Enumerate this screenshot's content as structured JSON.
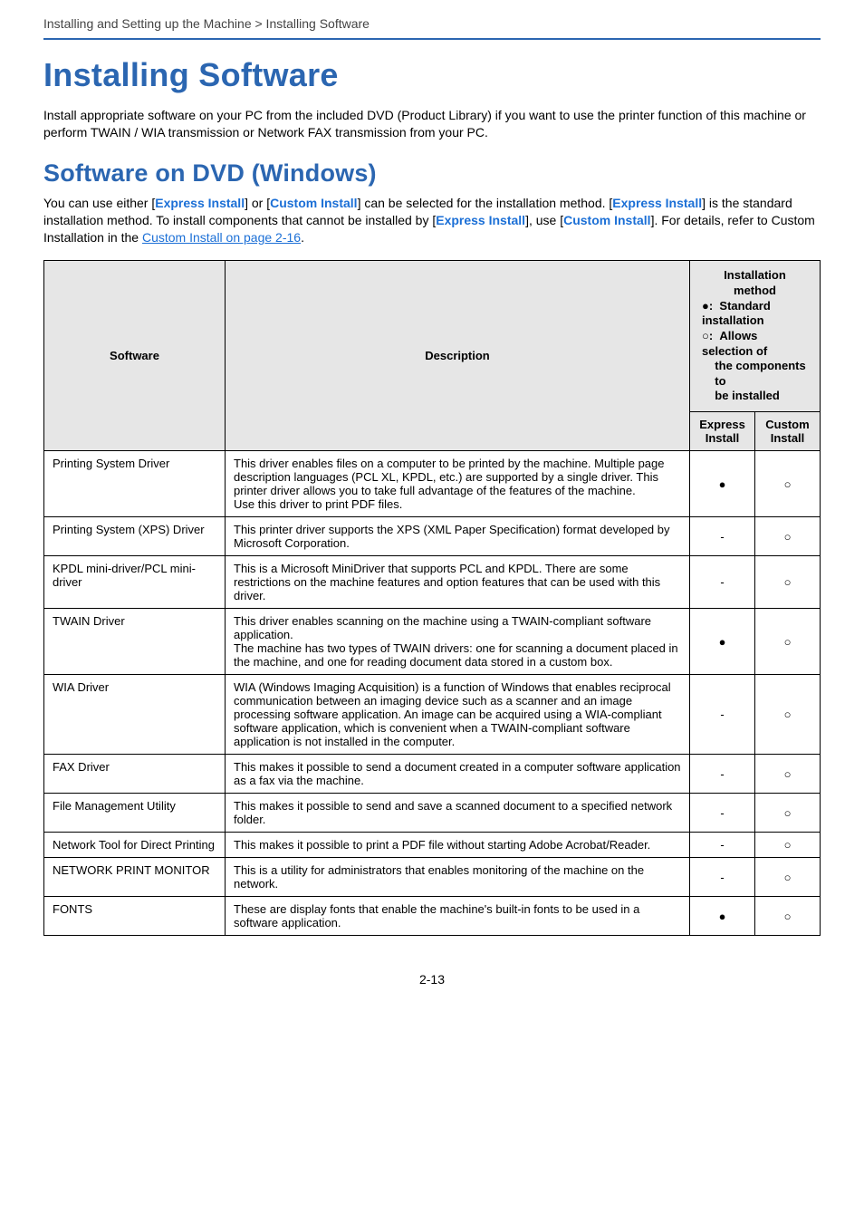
{
  "breadcrumb": "Installing and Setting up the Machine > Installing Software",
  "title": "Installing Software",
  "intro": "Install appropriate software on your PC from the included DVD (Product Library) if you want to use the printer function of this machine or perform TWAIN / WIA transmission or Network FAX transmission from your PC.",
  "sub_title": "Software on DVD (Windows)",
  "sub_intro_parts": {
    "a": "You can use either [",
    "express1": "Express Install",
    "b": "] or [",
    "custom1": "Custom Install",
    "c": "] can be selected for the installation method. [",
    "express2": "Express Install",
    "d": "] is the standard installation method. To install components that cannot be installed by [",
    "express3": "Express Install",
    "e": "], use [",
    "custom2": "Custom Install",
    "f": "]. For details, refer to Custom Installation in the ",
    "link": "Custom Install on page 2-16",
    "g": "."
  },
  "table": {
    "headers": {
      "software": "Software",
      "description": "Description",
      "install_method_title": "Installation method",
      "legend_standard": "Standard installation",
      "legend_selection_l1": "Allows selection of",
      "legend_selection_l2": "the components to",
      "legend_selection_l3": "be installed",
      "express": "Express Install",
      "custom": "Custom Install"
    },
    "rows": [
      {
        "software": "Printing System Driver",
        "description": "This driver enables files on a computer to be printed by the machine. Multiple page description languages (PCL XL, KPDL, etc.) are supported by a single driver. This printer driver allows you to take full advantage of the features of the machine.\nUse this driver to print PDF files.",
        "express": "●",
        "custom": "○"
      },
      {
        "software": "Printing System (XPS) Driver",
        "description": "This printer driver supports the XPS (XML Paper Specification) format developed by Microsoft Corporation.",
        "express": "-",
        "custom": "○"
      },
      {
        "software": "KPDL mini-driver/PCL mini-driver",
        "description": "This is a Microsoft MiniDriver that supports PCL and KPDL. There are some restrictions on the machine features and option features that can be used with this driver.",
        "express": "-",
        "custom": "○"
      },
      {
        "software": "TWAIN Driver",
        "description": "This driver enables scanning on the machine using a TWAIN-compliant software application.\nThe machine has two types of TWAIN drivers: one for scanning a document placed in the machine, and one for reading document data stored in a custom box.",
        "express": "●",
        "custom": "○"
      },
      {
        "software": "WIA Driver",
        "description": "WIA (Windows Imaging Acquisition) is a function of Windows that enables reciprocal communication between an imaging device such as a scanner and an image processing software application. An image can be acquired using a WIA-compliant software application, which is convenient when a TWAIN-compliant software application is not installed in the computer.",
        "express": "-",
        "custom": "○"
      },
      {
        "software": "FAX Driver",
        "description": "This makes it possible to send a document created in a computer software application as a fax via the machine.",
        "express": "-",
        "custom": "○"
      },
      {
        "software": "File Management Utility",
        "description": "This makes it possible to send and save a scanned document to a specified network folder.",
        "express": "-",
        "custom": "○"
      },
      {
        "software": "Network Tool for Direct Printing",
        "description": "This makes it possible to print a PDF file without starting Adobe Acrobat/Reader.",
        "express": "-",
        "custom": "○"
      },
      {
        "software": "NETWORK PRINT MONITOR",
        "description": "This is a utility for administrators that enables monitoring of the machine on the network.",
        "express": "-",
        "custom": "○"
      },
      {
        "software": "FONTS",
        "description": "These are display fonts that enable the machine's built-in fonts to be used in a software application.",
        "express": "●",
        "custom": "○"
      }
    ]
  },
  "page_number": "2-13"
}
